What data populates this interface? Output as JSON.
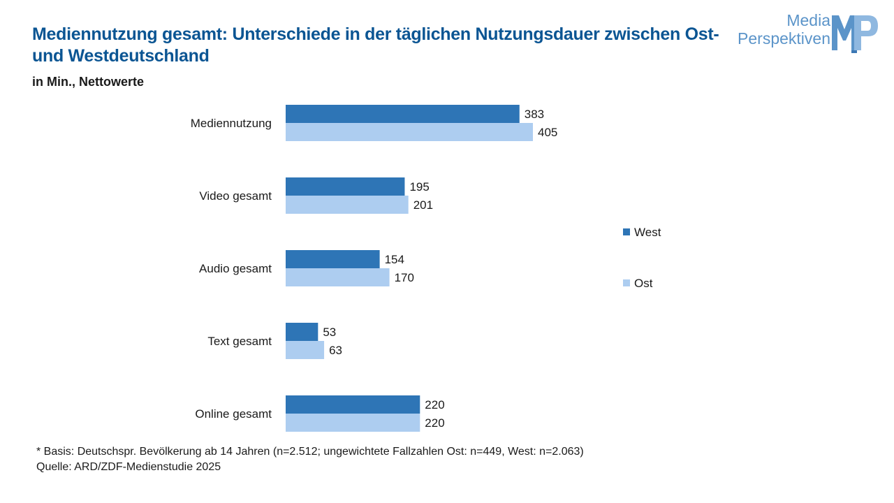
{
  "title": "Mediennutzung gesamt: Unterschiede in der täglichen Nutzungsdauer zwischen Ost- und Westdeutschland",
  "subtitle": "in Min., Nettowerte",
  "logo": {
    "line1": "Media",
    "line2": "Perspektiven",
    "mark": "MP"
  },
  "footnote": {
    "basis": "* Basis: Deutschspr. Bevölkerung ab 14 Jahren (n=2.512; ungewichtete Fallzahlen Ost: n=449, West: n=2.063)",
    "source": "Quelle: ARD/ZDF-Medienstudie 2025"
  },
  "colors": {
    "title": "#0b5593",
    "west": "#2e75b6",
    "ost": "#adcdf0",
    "logo": "#5b94c9"
  },
  "chart_data": {
    "type": "bar",
    "orientation": "horizontal",
    "categories": [
      "Mediennutzung",
      "Video gesamt",
      "Audio gesamt",
      "Text gesamt",
      "Online gesamt"
    ],
    "series": [
      {
        "name": "West",
        "color": "#2e75b6",
        "values": [
          383,
          195,
          154,
          53,
          220
        ]
      },
      {
        "name": "Ost",
        "color": "#adcdf0",
        "values": [
          405,
          201,
          170,
          63,
          220
        ]
      }
    ],
    "title": "Mediennutzung gesamt: Unterschiede in der täglichen Nutzungsdauer zwischen Ost- und Westdeutschland",
    "xlabel": "",
    "ylabel": "",
    "xlim": [
      0,
      460
    ],
    "grid": false,
    "legend": "right",
    "data_labels": true
  }
}
